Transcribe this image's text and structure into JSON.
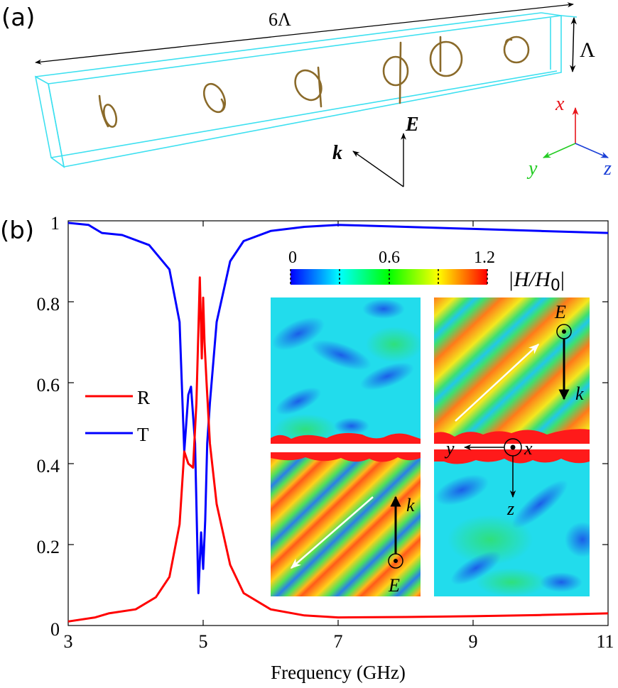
{
  "panel_a": {
    "label": "(a)",
    "length_label": "6Λ",
    "period_label": "Λ",
    "k_label": "k",
    "E_label": "E",
    "axes": {
      "x": "x",
      "y": "y",
      "z": "z",
      "x_color": "#e8151b",
      "y_color": "#22cc22",
      "z_color": "#1a3fd6"
    },
    "box_color": "#3ee0f0",
    "wire_color": "#8a6a2a"
  },
  "panel_b": {
    "label": "(b)",
    "colorbar": {
      "ticks": [
        "0",
        "0.6",
        "1.2"
      ],
      "label": "|H/H₀|",
      "label_main": "|H/H",
      "label_sub": "0",
      "label_end": "|"
    },
    "insets": {
      "top_right": {
        "E": "E",
        "k": "k"
      },
      "bottom_left": {
        "E": "E",
        "k": "k"
      },
      "axes": {
        "x": "x",
        "y": "y",
        "z": "z"
      }
    }
  },
  "chart_data": {
    "type": "line",
    "title": "",
    "xlabel": "Frequency (GHz)",
    "ylabel": "",
    "xlim": [
      3,
      11
    ],
    "ylim": [
      0,
      1
    ],
    "xticks": [
      "3",
      "5",
      "7",
      "9",
      "11"
    ],
    "yticks": [
      "0",
      "0.2",
      "0.4",
      "0.6",
      "0.8",
      "1"
    ],
    "grid": false,
    "legend_position": "left-middle",
    "series": [
      {
        "name": "R",
        "color": "#ff0000",
        "x": [
          3.0,
          3.4,
          3.6,
          4.0,
          4.3,
          4.5,
          4.65,
          4.72,
          4.78,
          4.85,
          4.9,
          4.95,
          4.98,
          5.0,
          5.02,
          5.05,
          5.1,
          5.2,
          5.4,
          5.6,
          6.0,
          6.5,
          7.0,
          8.0,
          9.0,
          10.0,
          11.0
        ],
        "y": [
          0.01,
          0.02,
          0.03,
          0.04,
          0.07,
          0.12,
          0.25,
          0.43,
          0.4,
          0.39,
          0.55,
          0.86,
          0.66,
          0.81,
          0.7,
          0.6,
          0.45,
          0.3,
          0.15,
          0.08,
          0.04,
          0.025,
          0.02,
          0.021,
          0.023,
          0.026,
          0.03
        ]
      },
      {
        "name": "T",
        "color": "#0000ff",
        "x": [
          3.0,
          3.3,
          3.5,
          3.8,
          4.2,
          4.5,
          4.65,
          4.72,
          4.78,
          4.82,
          4.88,
          4.93,
          4.97,
          5.0,
          5.03,
          5.06,
          5.1,
          5.2,
          5.4,
          5.6,
          6.0,
          6.5,
          7.0,
          8.0,
          9.0,
          10.0,
          11.0
        ],
        "y": [
          0.995,
          0.99,
          0.97,
          0.965,
          0.94,
          0.88,
          0.75,
          0.43,
          0.57,
          0.59,
          0.45,
          0.08,
          0.23,
          0.14,
          0.26,
          0.45,
          0.55,
          0.75,
          0.9,
          0.95,
          0.975,
          0.985,
          0.99,
          0.985,
          0.98,
          0.975,
          0.97
        ]
      }
    ],
    "inset_colorbar": {
      "range": [
        0,
        1.2
      ],
      "ticks": [
        0,
        0.6,
        1.2
      ],
      "label": "|H/H0|",
      "colormap": "jet"
    }
  }
}
